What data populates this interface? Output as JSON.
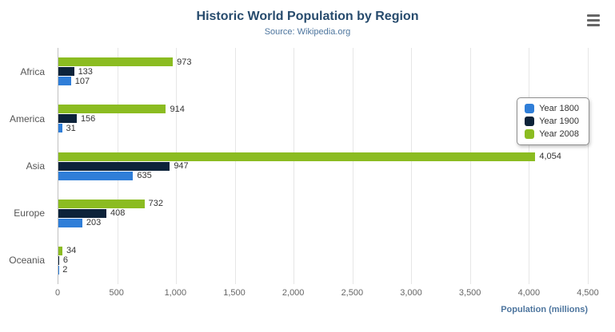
{
  "header": {
    "title": "Historic World Population by Region",
    "subtitle": "Source: Wikipedia.org"
  },
  "export_menu": {
    "icon": "hamburger-icon"
  },
  "chart_data": {
    "type": "bar",
    "orientation": "horizontal",
    "title": "Historic World Population by Region",
    "subtitle": "Source: Wikipedia.org",
    "categories": [
      "Africa",
      "America",
      "Asia",
      "Europe",
      "Oceania"
    ],
    "series": [
      {
        "name": "Year 1800",
        "color": "#2f7ed8",
        "values": [
          107,
          31,
          635,
          203,
          2
        ]
      },
      {
        "name": "Year 1900",
        "color": "#0d233a",
        "values": [
          133,
          156,
          947,
          408,
          6
        ]
      },
      {
        "name": "Year 2008",
        "color": "#8bbc21",
        "values": [
          973,
          914,
          4054,
          732,
          34
        ]
      }
    ],
    "bar_order_top_to_bottom": [
      "Year 2008",
      "Year 1900",
      "Year 1800"
    ],
    "xlabel": "Population (millions)",
    "ylabel": "",
    "xlim": [
      0,
      4500
    ],
    "xticks": [
      0,
      500,
      1000,
      1500,
      2000,
      2500,
      3000,
      3500,
      4000,
      4500
    ],
    "tick_labels": [
      "0",
      "500",
      "1,000",
      "1,500",
      "2,000",
      "2,500",
      "3,000",
      "3,500",
      "4,000",
      "4,500"
    ],
    "grid": true,
    "legend_position": "right-floating"
  }
}
